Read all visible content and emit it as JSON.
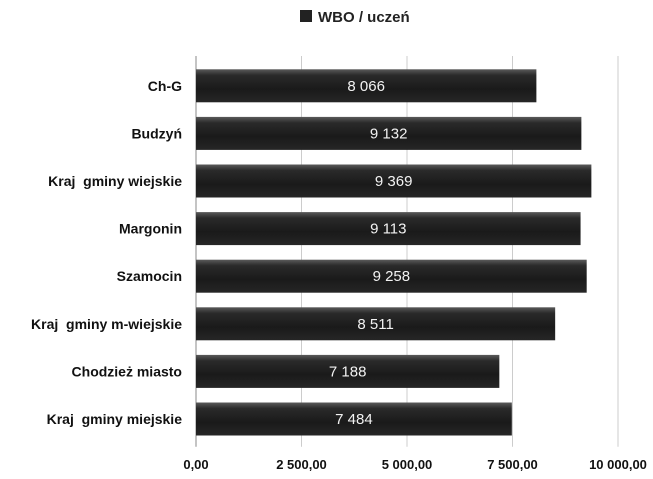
{
  "chart_data": {
    "type": "bar",
    "orientation": "horizontal",
    "categories": [
      "Ch-G",
      "Budzyń",
      "Kraj  gminy wiejskie",
      "Margonin",
      "Szamocin",
      "Kraj  gminy m-wiejskie",
      "Chodzież miasto",
      "Kraj  gminy miejskie"
    ],
    "series": [
      {
        "name": "WBO / uczeń",
        "values": [
          8066,
          9132,
          9369,
          9113,
          9258,
          8511,
          7188,
          7484
        ],
        "labels": [
          "8 066",
          "9 132",
          "9 369",
          "9 113",
          "9 258",
          "8 511",
          "7 188",
          "7 484"
        ]
      }
    ],
    "x_ticks": [
      0,
      2500,
      5000,
      7500,
      10000
    ],
    "x_tick_labels": [
      "0,00",
      "2 500,00",
      "5 000,00",
      "7 500,00",
      "10 000,00"
    ],
    "xlim": [
      0,
      10000
    ],
    "title": "",
    "xlabel": "",
    "ylabel": "",
    "grid": "vertical",
    "legend_position": "top",
    "colors": {
      "bar": "#1e1e1e",
      "bar_highlight": "#555555",
      "grid": "#cccccc",
      "axis": "#888888"
    }
  }
}
